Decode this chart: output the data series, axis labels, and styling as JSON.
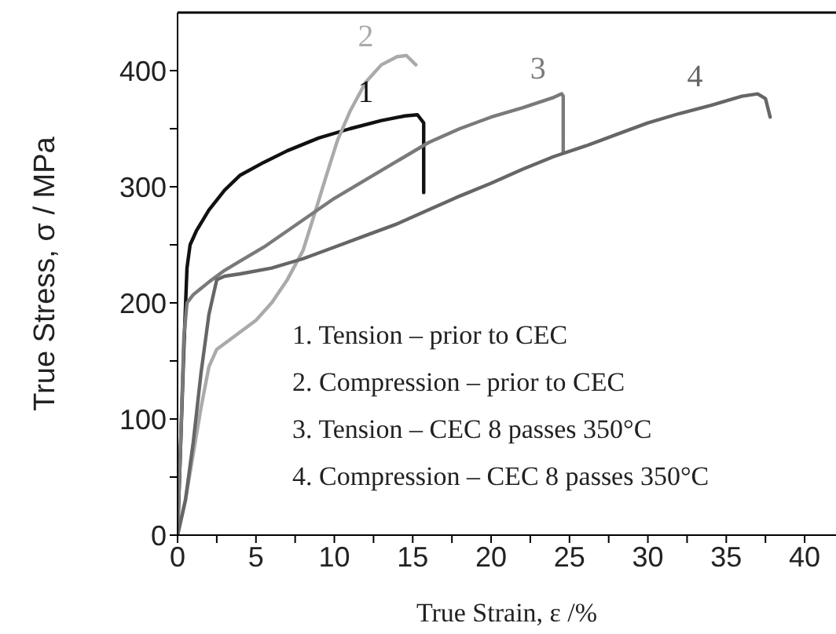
{
  "chart_data": {
    "type": "line",
    "xlabel": "True Strain, ε /%",
    "ylabel": "True Stress, σ / MPa",
    "xlim": [
      0,
      42
    ],
    "xticks": [
      0,
      {
        "value": 2.5,
        "label": null
      },
      5,
      {
        "value": 7.5,
        "label": null
      },
      10,
      {
        "value": 12.5,
        "label": null
      },
      15,
      {
        "value": 17.5,
        "label": null
      },
      20,
      {
        "value": 22.5,
        "label": null
      },
      25,
      {
        "value": 27.5,
        "label": null
      },
      30,
      {
        "value": 32.5,
        "label": null
      },
      35,
      {
        "value": 37.5,
        "label": null
      },
      40
    ],
    "ylim": [
      0,
      450
    ],
    "yticks": [
      0,
      {
        "value": 50,
        "label": null
      },
      100,
      {
        "value": 150,
        "label": null
      },
      200,
      {
        "value": 250,
        "label": null
      },
      300,
      {
        "value": 350,
        "label": null
      },
      400
    ],
    "marker": "none",
    "line_style": "solid",
    "series": [
      {
        "name": "1",
        "color": "#111111",
        "x": [
          0,
          0.2,
          0.4,
          0.6,
          0.8,
          1.2,
          2,
          3,
          4,
          5.5,
          7,
          9,
          11,
          13,
          14.5,
          15.3,
          15.7,
          15.7
        ],
        "values": [
          0,
          80,
          160,
          230,
          250,
          262,
          280,
          297,
          310,
          321,
          331,
          342,
          350,
          357,
          361,
          362,
          355,
          295
        ]
      },
      {
        "name": "2",
        "color": "#aaaaaa",
        "x": [
          0,
          0.5,
          1,
          1.5,
          2,
          2.5,
          3.5,
          5,
          6,
          7,
          8,
          8.7,
          9.5,
          10.2,
          11,
          12,
          13,
          14,
          14.6,
          15.2
        ],
        "values": [
          0,
          30,
          70,
          110,
          145,
          160,
          170,
          185,
          200,
          220,
          245,
          275,
          310,
          340,
          365,
          390,
          405,
          412,
          413,
          405
        ]
      },
      {
        "name": "3",
        "color": "#7a7a7a",
        "x": [
          0,
          0.2,
          0.4,
          0.6,
          1,
          2,
          3,
          4,
          5.5,
          7,
          8.5,
          10,
          12,
          14,
          16,
          18,
          20,
          22,
          24,
          24.5,
          24.6,
          24.6
        ],
        "values": [
          0,
          80,
          170,
          200,
          207,
          218,
          228,
          236,
          248,
          262,
          276,
          290,
          306,
          322,
          338,
          350,
          360,
          368,
          377,
          380,
          378,
          330
        ]
      },
      {
        "name": "4",
        "color": "#666666",
        "x": [
          0,
          0.5,
          1,
          1.5,
          2,
          2.5,
          3,
          4,
          6,
          8,
          10,
          12,
          14,
          16,
          18,
          20,
          22,
          24,
          26,
          28,
          30,
          32,
          34,
          36,
          37,
          37.5,
          37.8
        ],
        "values": [
          0,
          30,
          80,
          140,
          190,
          220,
          223,
          225,
          230,
          238,
          248,
          258,
          268,
          280,
          292,
          303,
          315,
          326,
          335,
          345,
          355,
          363,
          370,
          378,
          380,
          376,
          360
        ]
      }
    ],
    "annotations": [
      "1. Tension – prior to CEC",
      "2. Compression – prior to CEC",
      "3. Tension – CEC 8 passes 350°C",
      "4. Compression – CEC 8 passes 350°C"
    ]
  }
}
